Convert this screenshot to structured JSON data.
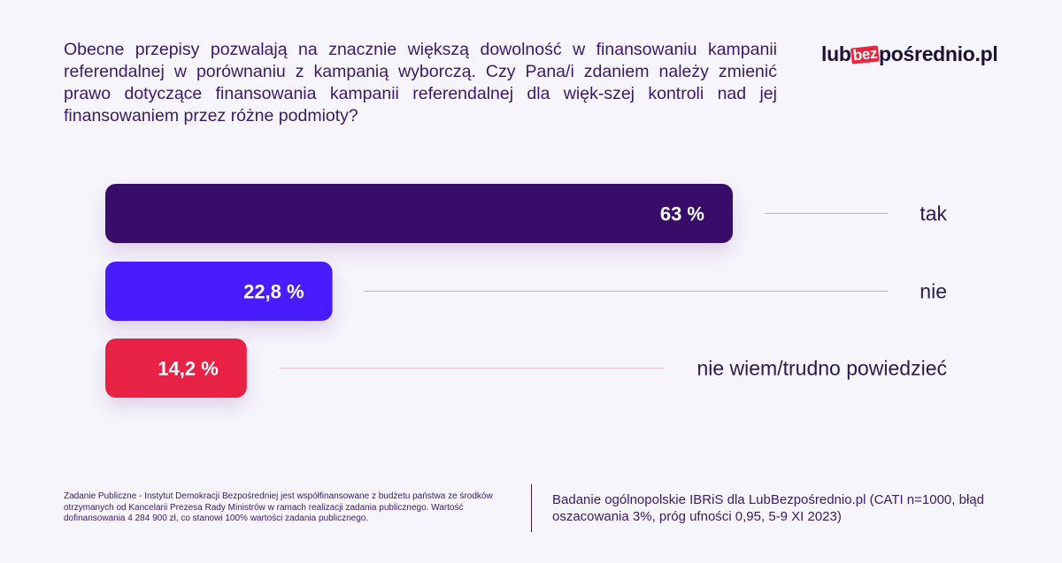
{
  "question": "Obecne przepisy pozwalają na znacznie większą dowolność w finansowaniu kampanii referendalnej w porównaniu z kampanią wyborczą. Czy Pana/i zdaniem należy zmienić prawo dotyczące finansowania kampanii referendalnej dla więk-szej kontroli nad jej finansowaniem przez różne podmioty?",
  "logo": {
    "prefix": "lub",
    "accent": "bez",
    "suffix": "pośrednio.pl"
  },
  "chart_data": {
    "type": "bar",
    "orientation": "horizontal",
    "categories": [
      "tak",
      "nie",
      "nie wiem/trudno powiedzieć"
    ],
    "values": [
      63,
      22.8,
      14.2
    ],
    "value_labels": [
      "63 %",
      "22,8 %",
      "14,2 %"
    ],
    "colors": [
      "#380a6b",
      "#4a1cff",
      "#e82244"
    ],
    "xlim": [
      0,
      100
    ],
    "grid": false,
    "legend": "none"
  },
  "footer": {
    "left": "Zadanie Publiczne - Instytut Demokracji Bezpośredniej jest współfinansowane z budżetu państwa ze środków otrzymanych od Kancelarii Prezesa Rady Ministrów w ramach realizacji zadania publicznego. Wartość dofinansowania 4 284 900 zł, co stanowi 100% wartości zadania publicznego.",
    "right": "Badanie ogólnopolskie IBRiS dla LubBezpośrednio.pl (CATI n=1000, błąd oszacowania 3%, próg ufności 0,95, 5-9 XI 2023)"
  }
}
